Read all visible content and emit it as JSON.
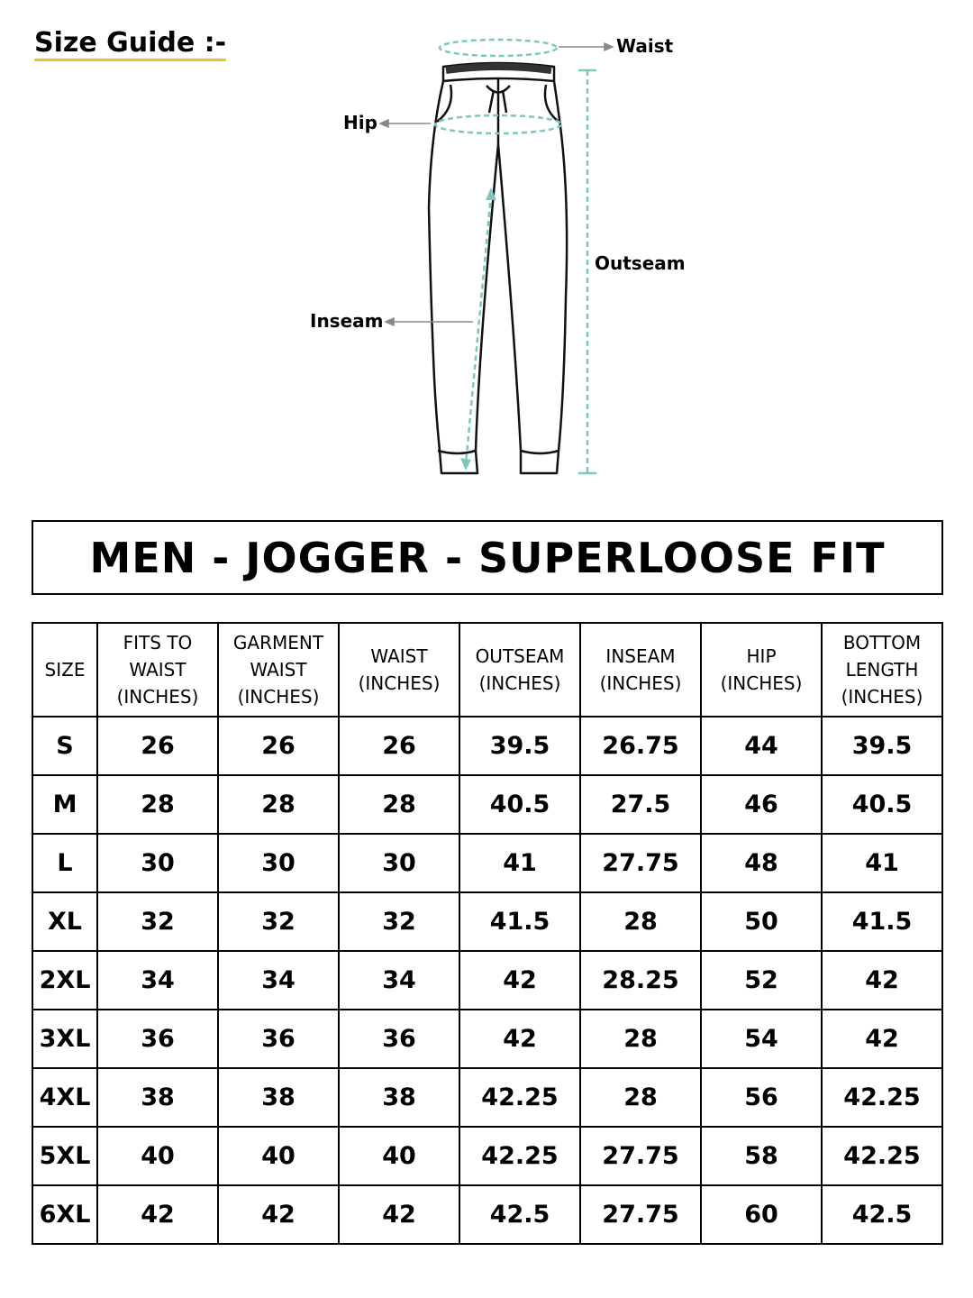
{
  "header": {
    "title": "Size Guide :-"
  },
  "diagram": {
    "waist": "Waist",
    "hip": "Hip",
    "outseam": "Outseam",
    "inseam": "Inseam"
  },
  "table": {
    "title": "MEN - JOGGER - SUPERLOOSE FIT",
    "headers": [
      [
        "SIZE"
      ],
      [
        "FITS TO",
        "WAIST",
        "(INCHES)"
      ],
      [
        "GARMENT",
        "WAIST",
        "(INCHES)"
      ],
      [
        "WAIST",
        "(INCHES)"
      ],
      [
        "OUTSEAM",
        "(INCHES)"
      ],
      [
        "INSEAM",
        "(INCHES)"
      ],
      [
        "HIP",
        "(INCHES)"
      ],
      [
        "BOTTOM",
        "LENGTH",
        "(INCHES)"
      ]
    ],
    "rows": [
      [
        "S",
        26,
        26,
        26,
        39.5,
        26.75,
        44,
        39.5
      ],
      [
        "M",
        28,
        28,
        28,
        40.5,
        27.5,
        46,
        40.5
      ],
      [
        "L",
        30,
        30,
        30,
        41,
        27.75,
        48,
        41
      ],
      [
        "XL",
        32,
        32,
        32,
        41.5,
        28,
        50,
        41.5
      ],
      [
        "2XL",
        34,
        34,
        34,
        42,
        28.25,
        52,
        42
      ],
      [
        "3XL",
        36,
        36,
        36,
        42,
        28,
        54,
        42
      ],
      [
        "4XL",
        38,
        38,
        38,
        42.25,
        28,
        56,
        42.25
      ],
      [
        "5XL",
        40,
        40,
        40,
        42.25,
        27.75,
        58,
        42.25
      ],
      [
        "6XL",
        42,
        42,
        42,
        42.5,
        27.75,
        60,
        42.5
      ]
    ]
  }
}
